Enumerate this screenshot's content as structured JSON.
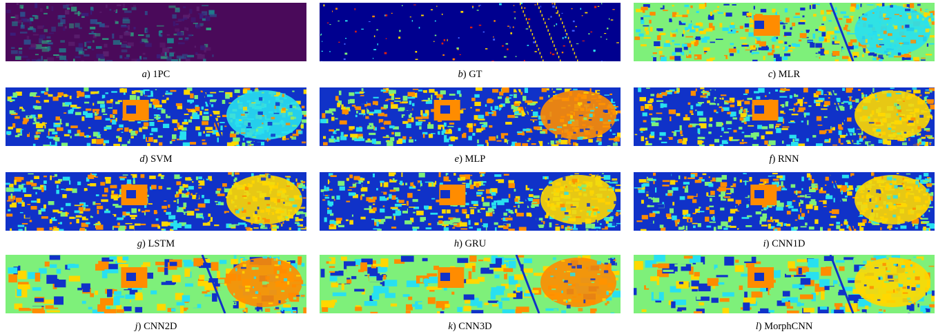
{
  "figure": {
    "panels": [
      {
        "letter": "a",
        "method": "1PC",
        "style": "pc"
      },
      {
        "letter": "b",
        "method": "GT",
        "style": "gt"
      },
      {
        "letter": "c",
        "method": "MLR",
        "style": "mlr"
      },
      {
        "letter": "d",
        "method": "SVM",
        "style": "svm"
      },
      {
        "letter": "e",
        "method": "MLP",
        "style": "mlp"
      },
      {
        "letter": "f",
        "method": "RNN",
        "style": "rnn"
      },
      {
        "letter": "g",
        "method": "LSTM",
        "style": "lstm"
      },
      {
        "letter": "h",
        "method": "GRU",
        "style": "gru"
      },
      {
        "letter": "i",
        "method": "CNN1D",
        "style": "cnn1d"
      },
      {
        "letter": "j",
        "method": "CNN2D",
        "style": "cnn2d"
      },
      {
        "letter": "k",
        "method": "CNN3D",
        "style": "cnn3d"
      },
      {
        "letter": "l",
        "method": "MorphCNN",
        "style": "morph"
      }
    ],
    "colors": {
      "pc_background": "#4a0a5a",
      "gt_background": "#00008f",
      "jet_blue": "#1032c8",
      "jet_cyan": "#28e0f0",
      "jet_green": "#7ef07a",
      "jet_yellow": "#ffd800",
      "jet_orange": "#ff8c00",
      "jet_red": "#e02010"
    }
  }
}
